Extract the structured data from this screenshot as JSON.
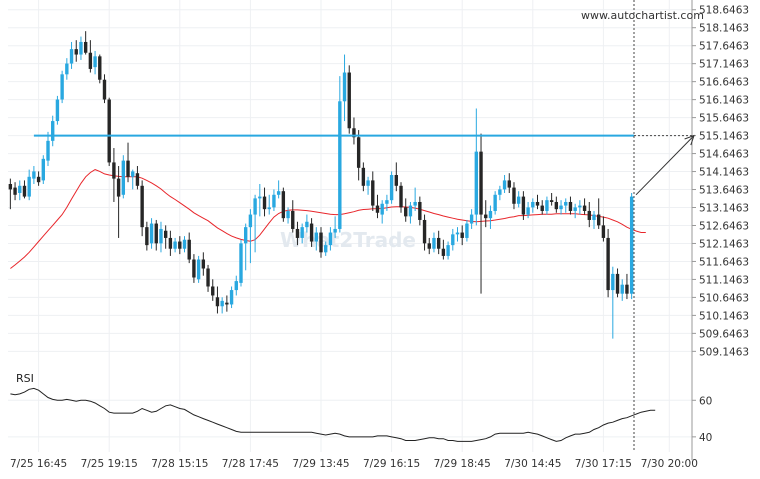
{
  "watermark_url": "www.autochartist.com",
  "watermark_brand": "What2Trade",
  "chart_data": {
    "type": "candlestick",
    "price_axis": {
      "ticks": [
        "518.6463",
        "518.1463",
        "517.6463",
        "517.1463",
        "516.6463",
        "516.1463",
        "515.6463",
        "515.1463",
        "514.6463",
        "514.1463",
        "513.6463",
        "513.1463",
        "512.6463",
        "512.1463",
        "511.6463",
        "511.1463",
        "510.6463",
        "510.1463",
        "509.6463",
        "509.1463"
      ],
      "range": [
        508.85,
        518.75
      ]
    },
    "time_axis": {
      "labels": [
        "7/25 16:45",
        "7/25 19:15",
        "7/28 15:15",
        "7/28 17:45",
        "7/29 13:45",
        "7/29 16:15",
        "7/29 18:45",
        "7/30 14:45",
        "7/30 17:15",
        "7/30 20:00"
      ],
      "label_index": [
        6,
        21,
        36,
        51,
        66,
        81,
        96,
        111,
        126,
        140
      ]
    },
    "resistance_level": 515.1463,
    "projection": {
      "from_price": 513.5,
      "to_price": 515.1463
    },
    "ohlc": [
      [
        513.8,
        513.95,
        513.1,
        513.65
      ],
      [
        513.7,
        513.85,
        513.35,
        513.5
      ],
      [
        513.55,
        513.9,
        513.35,
        513.75
      ],
      [
        513.75,
        513.9,
        513.4,
        513.45
      ],
      [
        513.45,
        514.2,
        513.35,
        514.0
      ],
      [
        513.95,
        514.3,
        513.8,
        514.15
      ],
      [
        514.0,
        514.15,
        513.75,
        513.85
      ],
      [
        513.9,
        514.6,
        513.8,
        514.5
      ],
      [
        514.45,
        515.25,
        514.3,
        515.0
      ],
      [
        515.0,
        515.7,
        514.85,
        515.55
      ],
      [
        515.55,
        516.25,
        515.45,
        516.15
      ],
      [
        516.15,
        516.95,
        516.05,
        516.85
      ],
      [
        516.85,
        517.3,
        516.7,
        517.15
      ],
      [
        517.15,
        517.75,
        517.0,
        517.55
      ],
      [
        517.55,
        517.8,
        517.2,
        517.4
      ],
      [
        517.4,
        517.9,
        517.25,
        517.75
      ],
      [
        517.75,
        518.05,
        517.4,
        517.45
      ],
      [
        517.45,
        517.8,
        516.9,
        517.0
      ],
      [
        517.05,
        517.5,
        516.85,
        517.35
      ],
      [
        517.35,
        517.4,
        516.6,
        516.7
      ],
      [
        516.7,
        516.85,
        516.05,
        516.15
      ],
      [
        516.15,
        516.2,
        514.3,
        514.4
      ],
      [
        514.4,
        514.8,
        513.3,
        513.95
      ],
      [
        513.95,
        514.3,
        512.3,
        513.45
      ],
      [
        513.5,
        514.6,
        513.4,
        514.45
      ],
      [
        514.45,
        514.95,
        513.85,
        514.0
      ],
      [
        514.0,
        514.2,
        513.65,
        514.15
      ],
      [
        514.1,
        514.3,
        513.65,
        513.75
      ],
      [
        513.75,
        513.9,
        512.35,
        512.6
      ],
      [
        512.6,
        512.75,
        511.95,
        512.1
      ],
      [
        512.15,
        512.85,
        512.0,
        512.7
      ],
      [
        512.7,
        512.8,
        511.95,
        512.15
      ],
      [
        512.15,
        512.75,
        511.9,
        512.55
      ],
      [
        512.5,
        512.65,
        512.0,
        512.3
      ],
      [
        512.3,
        512.5,
        511.8,
        512.0
      ],
      [
        512.0,
        512.3,
        511.9,
        512.2
      ],
      [
        512.2,
        512.35,
        511.85,
        512.0
      ],
      [
        512.0,
        512.35,
        511.9,
        512.25
      ],
      [
        512.25,
        512.45,
        511.6,
        511.7
      ],
      [
        511.7,
        511.85,
        511.05,
        511.2
      ],
      [
        511.15,
        511.8,
        511.05,
        511.7
      ],
      [
        511.7,
        511.9,
        511.25,
        511.45
      ],
      [
        511.45,
        511.55,
        510.8,
        510.95
      ],
      [
        510.95,
        511.15,
        510.55,
        510.7
      ],
      [
        510.65,
        510.95,
        510.2,
        510.4
      ],
      [
        510.4,
        510.65,
        510.2,
        510.55
      ],
      [
        510.5,
        510.7,
        510.25,
        510.45
      ],
      [
        510.45,
        510.95,
        510.35,
        510.85
      ],
      [
        510.85,
        511.25,
        510.7,
        511.1
      ],
      [
        511.05,
        512.25,
        510.95,
        512.15
      ],
      [
        512.15,
        512.7,
        511.4,
        512.6
      ],
      [
        512.6,
        513.1,
        511.6,
        512.95
      ],
      [
        512.95,
        513.5,
        511.9,
        513.4
      ],
      [
        513.4,
        513.8,
        512.9,
        513.45
      ],
      [
        513.45,
        513.7,
        512.9,
        513.1
      ],
      [
        513.1,
        513.5,
        512.95,
        513.15
      ],
      [
        513.15,
        513.65,
        513.05,
        513.5
      ],
      [
        513.5,
        513.9,
        513.4,
        513.6
      ],
      [
        513.6,
        513.7,
        512.75,
        512.85
      ],
      [
        512.85,
        513.15,
        512.7,
        513.05
      ],
      [
        513.05,
        513.35,
        512.45,
        512.55
      ],
      [
        512.55,
        512.75,
        512.1,
        512.3
      ],
      [
        512.3,
        512.7,
        512.15,
        512.6
      ],
      [
        512.6,
        512.95,
        512.45,
        512.75
      ],
      [
        512.7,
        512.85,
        512.05,
        512.2
      ],
      [
        512.2,
        512.6,
        511.95,
        512.45
      ],
      [
        512.45,
        512.6,
        511.75,
        511.9
      ],
      [
        511.9,
        512.2,
        511.8,
        512.1
      ],
      [
        512.1,
        512.6,
        511.95,
        512.45
      ],
      [
        512.45,
        512.9,
        512.3,
        512.55
      ],
      [
        512.55,
        516.8,
        512.45,
        516.1
      ],
      [
        516.1,
        517.4,
        515.55,
        516.9
      ],
      [
        516.9,
        517.1,
        515.2,
        515.35
      ],
      [
        515.35,
        515.65,
        514.9,
        515.1
      ],
      [
        515.1,
        515.3,
        513.9,
        514.25
      ],
      [
        514.25,
        514.4,
        513.6,
        513.75
      ],
      [
        513.75,
        514.0,
        513.5,
        513.9
      ],
      [
        513.9,
        514.15,
        513.05,
        513.2
      ],
      [
        513.2,
        513.5,
        512.85,
        513.0
      ],
      [
        512.95,
        513.35,
        512.7,
        513.25
      ],
      [
        513.25,
        513.5,
        513.05,
        513.35
      ],
      [
        513.35,
        514.15,
        513.25,
        514.05
      ],
      [
        514.05,
        514.4,
        513.6,
        513.75
      ],
      [
        513.75,
        513.85,
        513.0,
        513.15
      ],
      [
        513.15,
        513.4,
        512.75,
        512.9
      ],
      [
        512.9,
        513.3,
        512.7,
        513.2
      ],
      [
        513.2,
        513.7,
        513.05,
        513.3
      ],
      [
        513.3,
        513.45,
        512.65,
        512.8
      ],
      [
        512.8,
        512.95,
        511.95,
        512.15
      ],
      [
        512.15,
        512.3,
        511.85,
        512.0
      ],
      [
        512.0,
        512.45,
        511.9,
        512.3
      ],
      [
        512.3,
        512.5,
        511.85,
        512.0
      ],
      [
        512.0,
        512.25,
        511.7,
        511.8
      ],
      [
        511.8,
        512.2,
        511.7,
        512.1
      ],
      [
        512.1,
        512.55,
        511.95,
        512.4
      ],
      [
        512.4,
        512.6,
        512.2,
        512.45
      ],
      [
        512.45,
        512.65,
        512.1,
        512.3
      ],
      [
        512.3,
        512.8,
        512.2,
        512.7
      ],
      [
        512.7,
        513.1,
        512.55,
        512.95
      ],
      [
        512.95,
        515.9,
        512.65,
        514.7
      ],
      [
        514.7,
        515.2,
        510.75,
        512.95
      ],
      [
        512.95,
        513.35,
        512.6,
        512.85
      ],
      [
        512.85,
        513.2,
        512.55,
        513.05
      ],
      [
        513.05,
        513.6,
        512.95,
        513.5
      ],
      [
        513.5,
        513.75,
        513.35,
        513.65
      ],
      [
        513.65,
        514.05,
        513.55,
        513.9
      ],
      [
        513.9,
        514.1,
        513.55,
        513.7
      ],
      [
        513.7,
        513.85,
        513.1,
        513.25
      ],
      [
        513.25,
        513.6,
        513.15,
        513.45
      ],
      [
        513.45,
        513.6,
        512.8,
        512.95
      ],
      [
        512.95,
        513.3,
        512.85,
        513.15
      ],
      [
        513.15,
        513.4,
        513.0,
        513.3
      ],
      [
        513.3,
        513.5,
        513.1,
        513.2
      ],
      [
        513.2,
        513.35,
        512.95,
        513.05
      ],
      [
        513.05,
        513.45,
        512.95,
        513.35
      ],
      [
        513.35,
        513.55,
        513.2,
        513.3
      ],
      [
        513.3,
        513.45,
        513.0,
        513.1
      ],
      [
        513.1,
        513.35,
        512.95,
        513.2
      ],
      [
        513.2,
        513.4,
        513.0,
        513.3
      ],
      [
        513.3,
        513.45,
        512.95,
        513.05
      ],
      [
        513.05,
        513.25,
        512.85,
        513.15
      ],
      [
        513.15,
        513.35,
        512.95,
        513.2
      ],
      [
        513.2,
        513.4,
        512.95,
        513.05
      ],
      [
        513.05,
        513.3,
        512.6,
        512.8
      ],
      [
        512.8,
        513.05,
        512.55,
        512.95
      ],
      [
        512.95,
        513.4,
        512.55,
        512.65
      ],
      [
        512.65,
        512.9,
        512.2,
        512.3
      ],
      [
        512.3,
        512.55,
        510.65,
        510.85
      ],
      [
        510.85,
        511.5,
        509.5,
        511.3
      ],
      [
        511.3,
        511.45,
        510.65,
        510.75
      ],
      [
        510.75,
        511.15,
        510.55,
        511.0
      ],
      [
        511.0,
        511.3,
        510.6,
        510.75
      ],
      [
        510.75,
        513.55,
        510.6,
        513.45
      ]
    ],
    "ma_line": [
      511.45,
      511.55,
      511.66,
      511.77,
      511.9,
      512.05,
      512.2,
      512.35,
      512.5,
      512.65,
      512.8,
      512.95,
      513.15,
      513.38,
      513.6,
      513.82,
      514.0,
      514.12,
      514.2,
      514.15,
      514.08,
      514.05,
      514.03,
      514.01,
      514.0,
      514.0,
      514.0,
      514.0,
      513.96,
      513.9,
      513.83,
      513.75,
      513.66,
      513.55,
      513.45,
      513.37,
      513.28,
      513.19,
      513.1,
      513.0,
      512.92,
      512.85,
      512.78,
      512.68,
      512.58,
      512.5,
      512.42,
      512.35,
      512.3,
      512.26,
      512.23,
      512.21,
      512.25,
      512.38,
      512.55,
      512.72,
      512.88,
      512.98,
      513.04,
      513.07,
      513.08,
      513.08,
      513.07,
      513.06,
      513.04,
      513.02,
      513.0,
      512.98,
      512.96,
      512.95,
      512.95,
      512.97,
      513.0,
      513.03,
      513.07,
      513.09,
      513.1,
      513.11,
      513.11,
      513.12,
      513.14,
      513.16,
      513.17,
      513.17,
      513.16,
      513.15,
      513.13,
      513.1,
      513.06,
      513.02,
      512.98,
      512.95,
      512.91,
      512.88,
      512.85,
      512.82,
      512.8,
      512.78,
      512.76,
      512.75,
      512.76,
      512.77,
      512.78,
      512.8,
      512.82,
      512.84,
      512.87,
      512.89,
      512.92,
      512.92,
      512.93,
      512.94,
      512.95,
      512.96,
      512.96,
      512.96,
      512.97,
      512.97,
      512.97,
      512.97,
      512.97,
      512.96,
      512.95,
      512.94,
      512.92,
      512.9,
      512.88,
      512.85,
      512.8,
      512.75,
      512.68,
      512.6,
      512.54,
      512.49,
      512.45,
      512.45
    ],
    "rsi": {
      "label": "RSI",
      "ticks": [
        60,
        40
      ],
      "range": [
        35,
        70
      ],
      "values": [
        63.5,
        63.0,
        63.5,
        64.5,
        66.0,
        66.5,
        65.5,
        63.5,
        61.5,
        60.5,
        60.0,
        60.0,
        60.5,
        60.0,
        59.5,
        60.0,
        60.0,
        59.5,
        58.5,
        57.0,
        55.5,
        53.5,
        53.0,
        53.0,
        53.0,
        53.0,
        53.0,
        54.0,
        55.5,
        54.5,
        53.5,
        54.0,
        55.5,
        57.0,
        57.5,
        56.5,
        55.5,
        55.0,
        53.5,
        52.0,
        51.0,
        50.0,
        49.0,
        48.0,
        47.0,
        46.0,
        45.0,
        44.0,
        43.0,
        42.5,
        42.5,
        42.5,
        42.5,
        42.5,
        42.5,
        42.5,
        42.5,
        42.5,
        42.5,
        42.5,
        42.5,
        42.5,
        42.5,
        42.5,
        42.5,
        42.0,
        41.5,
        41.0,
        41.5,
        42.0,
        41.5,
        40.5,
        40.0,
        40.0,
        40.0,
        40.0,
        40.0,
        40.0,
        40.5,
        40.5,
        40.5,
        40.0,
        39.5,
        39.0,
        38.0,
        38.0,
        38.0,
        38.5,
        39.0,
        39.5,
        39.5,
        39.0,
        39.0,
        38.0,
        38.0,
        37.5,
        37.5,
        37.5,
        37.5,
        38.0,
        38.5,
        39.0,
        40.0,
        41.5,
        42.0,
        42.0,
        42.0,
        42.0,
        42.0,
        42.0,
        42.5,
        42.0,
        41.5,
        40.5,
        39.5,
        38.5,
        37.5,
        38.0,
        39.5,
        40.5,
        41.5,
        41.5,
        42.0,
        42.5,
        44.0,
        45.0,
        46.5,
        47.5,
        48.0,
        49.0,
        50.0,
        50.5,
        51.5,
        52.5,
        53.5,
        54.0,
        54.5,
        54.5
      ]
    }
  }
}
